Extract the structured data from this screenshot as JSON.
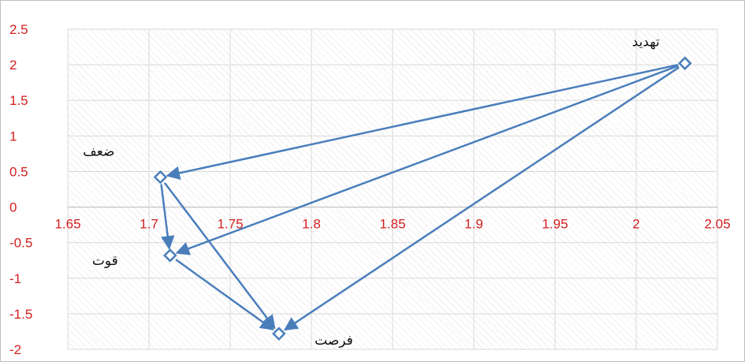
{
  "chart_data": {
    "type": "scatter",
    "title": "",
    "xlabel": "",
    "ylabel": "",
    "xlim": [
      1.65,
      2.05
    ],
    "ylim": [
      -2,
      2.5
    ],
    "x_ticks": [
      "1.65",
      "1.7",
      "1.75",
      "1.8",
      "1.85",
      "1.9",
      "1.95",
      "2",
      "2.05"
    ],
    "y_ticks": [
      "2.5",
      "2",
      "1.5",
      "1",
      "0.5",
      "0",
      "-0.5",
      "-1",
      "-1.5",
      "-2"
    ],
    "grid": true,
    "points": [
      {
        "label": "تهدید",
        "x": 2.03,
        "y": 2.02
      },
      {
        "label": "ضعف",
        "x": 1.707,
        "y": 0.42
      },
      {
        "label": "قوت",
        "x": 1.713,
        "y": -0.68
      },
      {
        "label": "فرصت",
        "x": 1.78,
        "y": -1.78
      }
    ],
    "arrows": [
      {
        "from": "تهدید",
        "to": "ضعف"
      },
      {
        "from": "تهدید",
        "to": "قوت"
      },
      {
        "from": "تهدید",
        "to": "فرصت"
      },
      {
        "from": "ضعف",
        "to": "قوت"
      },
      {
        "from": "ضعف",
        "to": "فرصت"
      },
      {
        "from": "قوت",
        "to": "فرصت"
      }
    ],
    "colors": {
      "series": "#4a7ebb",
      "tick_text": "#d42020",
      "grid": "#d9d9d9"
    }
  }
}
